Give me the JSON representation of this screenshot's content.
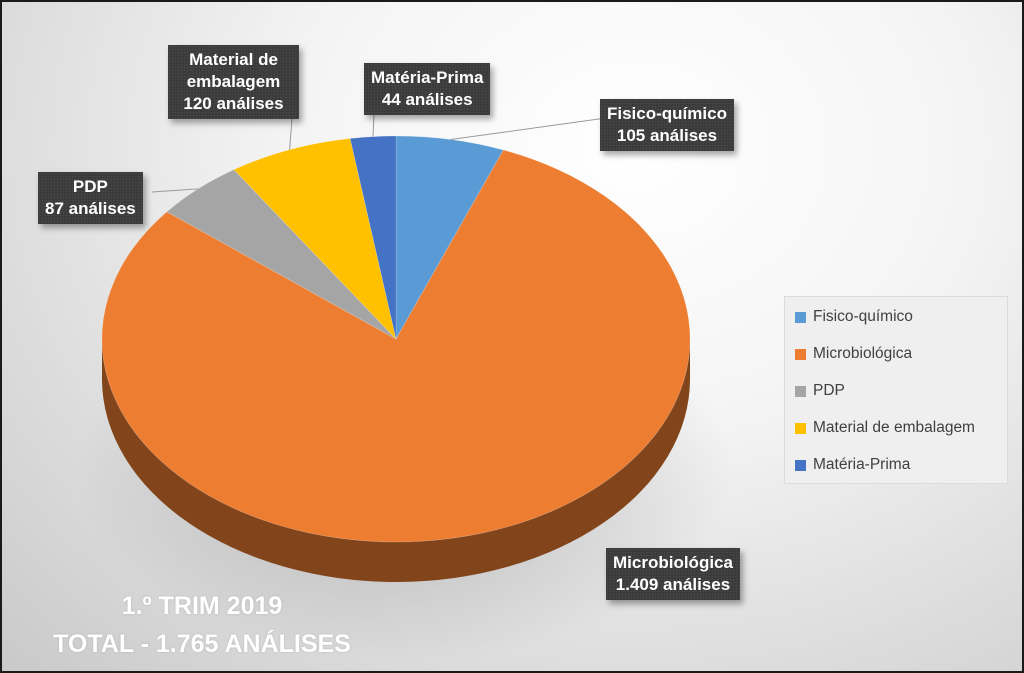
{
  "chart_data": {
    "type": "pie",
    "title": "1.º TRIM 2019",
    "subtitle": "TOTAL - 1.765 ANÁLISES",
    "categories": [
      "Fisico-químico",
      "Microbiológica",
      "PDP",
      "Material de embalagem",
      "Matéria-Prima"
    ],
    "values": [
      105,
      1409,
      87,
      120,
      44
    ],
    "colors": [
      "#5b9bd5",
      "#ed7d31",
      "#a5a5a5",
      "#ffc000",
      "#4472c4"
    ],
    "data_labels": [
      {
        "name": "Fisico-químico",
        "value": "105 análises"
      },
      {
        "name": "Microbiológica",
        "value": "1.409 análises"
      },
      {
        "name": "PDP",
        "value": "87 análises"
      },
      {
        "name": "Material de embalagem",
        "value": "120 análises"
      },
      {
        "name": "Matéria-Prima",
        "value": "44 análises"
      }
    ],
    "legend_placement": "right",
    "style": "3d-pie"
  }
}
